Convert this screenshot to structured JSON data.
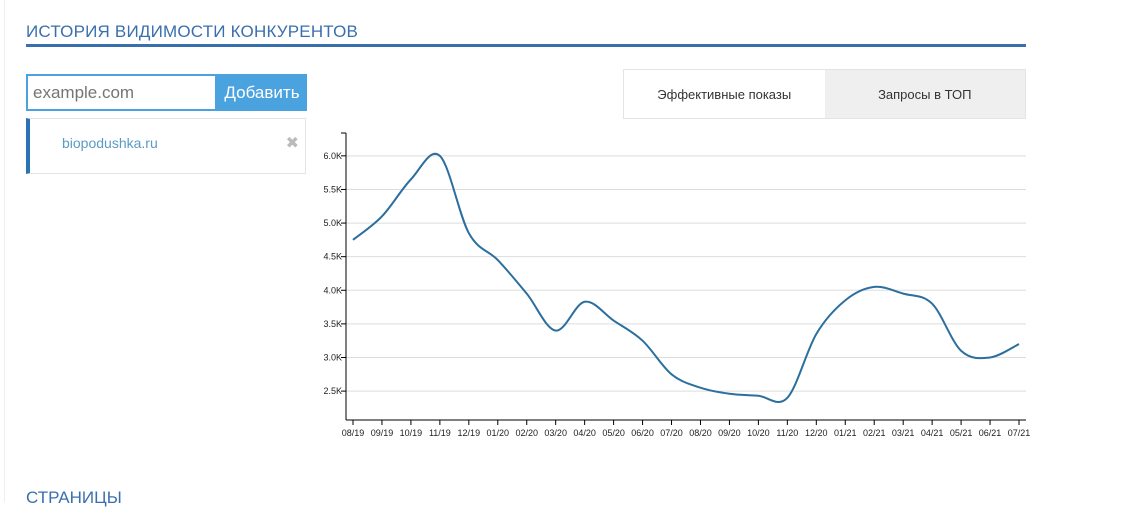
{
  "section_title": "ИСТОРИЯ ВИДИМОСТИ КОНКУРЕНТОВ",
  "input": {
    "placeholder": "example.com"
  },
  "add_button": "Добавить",
  "tabs": [
    {
      "label": "Эффективные показы"
    },
    {
      "label": "Запросы в ТОП"
    }
  ],
  "competitors": [
    {
      "domain": "biopodushka.ru",
      "remove_icon": "close-icon"
    }
  ],
  "next_section_title": "СТРАНИЦЫ",
  "chart_data": {
    "type": "line",
    "title": "",
    "xlabel": "",
    "ylabel": "",
    "categories": [
      "08/19",
      "09/19",
      "10/19",
      "11/19",
      "12/19",
      "01/20",
      "02/20",
      "03/20",
      "04/20",
      "05/20",
      "06/20",
      "07/20",
      "08/20",
      "09/20",
      "10/20",
      "11/20",
      "12/20",
      "01/21",
      "02/21",
      "03/21",
      "04/21",
      "05/21",
      "06/21",
      "07/21"
    ],
    "series": [
      {
        "name": "biopodushka.ru",
        "color": "#2c6f9e",
        "values": [
          4750,
          5100,
          5650,
          6000,
          4850,
          4450,
          3950,
          3400,
          3830,
          3550,
          3250,
          2750,
          2550,
          2460,
          2430,
          2400,
          3350,
          3850,
          4050,
          3950,
          3800,
          3100,
          3000,
          3200
        ]
      }
    ],
    "yticks": [
      {
        "v": 2500,
        "label": "2.5K"
      },
      {
        "v": 3000,
        "label": "3.0K"
      },
      {
        "v": 3500,
        "label": "3.5K"
      },
      {
        "v": 4000,
        "label": "4.0K"
      },
      {
        "v": 4500,
        "label": "4.5K"
      },
      {
        "v": 5000,
        "label": "5.0K"
      },
      {
        "v": 5500,
        "label": "5.5K"
      },
      {
        "v": 6000,
        "label": "6.0K"
      }
    ],
    "ylim": [
      2070,
      6340
    ],
    "grid": true
  }
}
